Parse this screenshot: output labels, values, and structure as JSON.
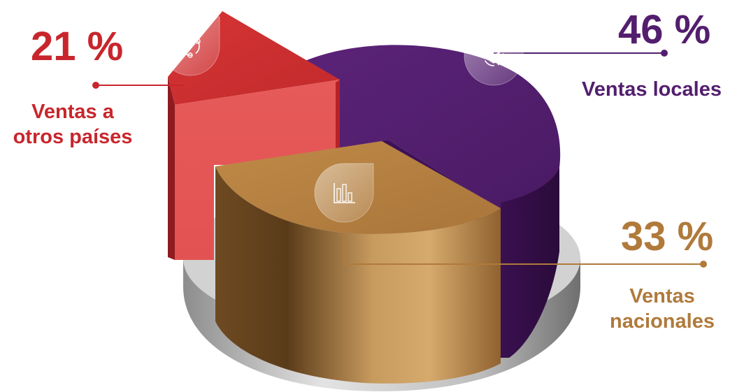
{
  "chart_data": {
    "type": "pie",
    "title": "",
    "slices": [
      {
        "label": "Ventas locales",
        "value": 46,
        "value_label": "46 %",
        "color": "#531e6e",
        "icon": "box-cycle-icon"
      },
      {
        "label": "Ventas nacionales",
        "value": 33,
        "value_label": "33 %",
        "color": "#b07a3b",
        "icon": "bar-chart-icon"
      },
      {
        "label": "Ventas a otros países",
        "label_lines": [
          "Ventas a",
          "otros países"
        ],
        "value": 21,
        "value_label": "21 %",
        "color": "#d22f33",
        "icon": "cycle-arrows-icon"
      }
    ],
    "legend": "none",
    "grid": false
  },
  "colors": {
    "local": "#531e6e",
    "nacional": "#b07a3b",
    "otros": "#c8262c",
    "base": "#c9c9c9"
  }
}
